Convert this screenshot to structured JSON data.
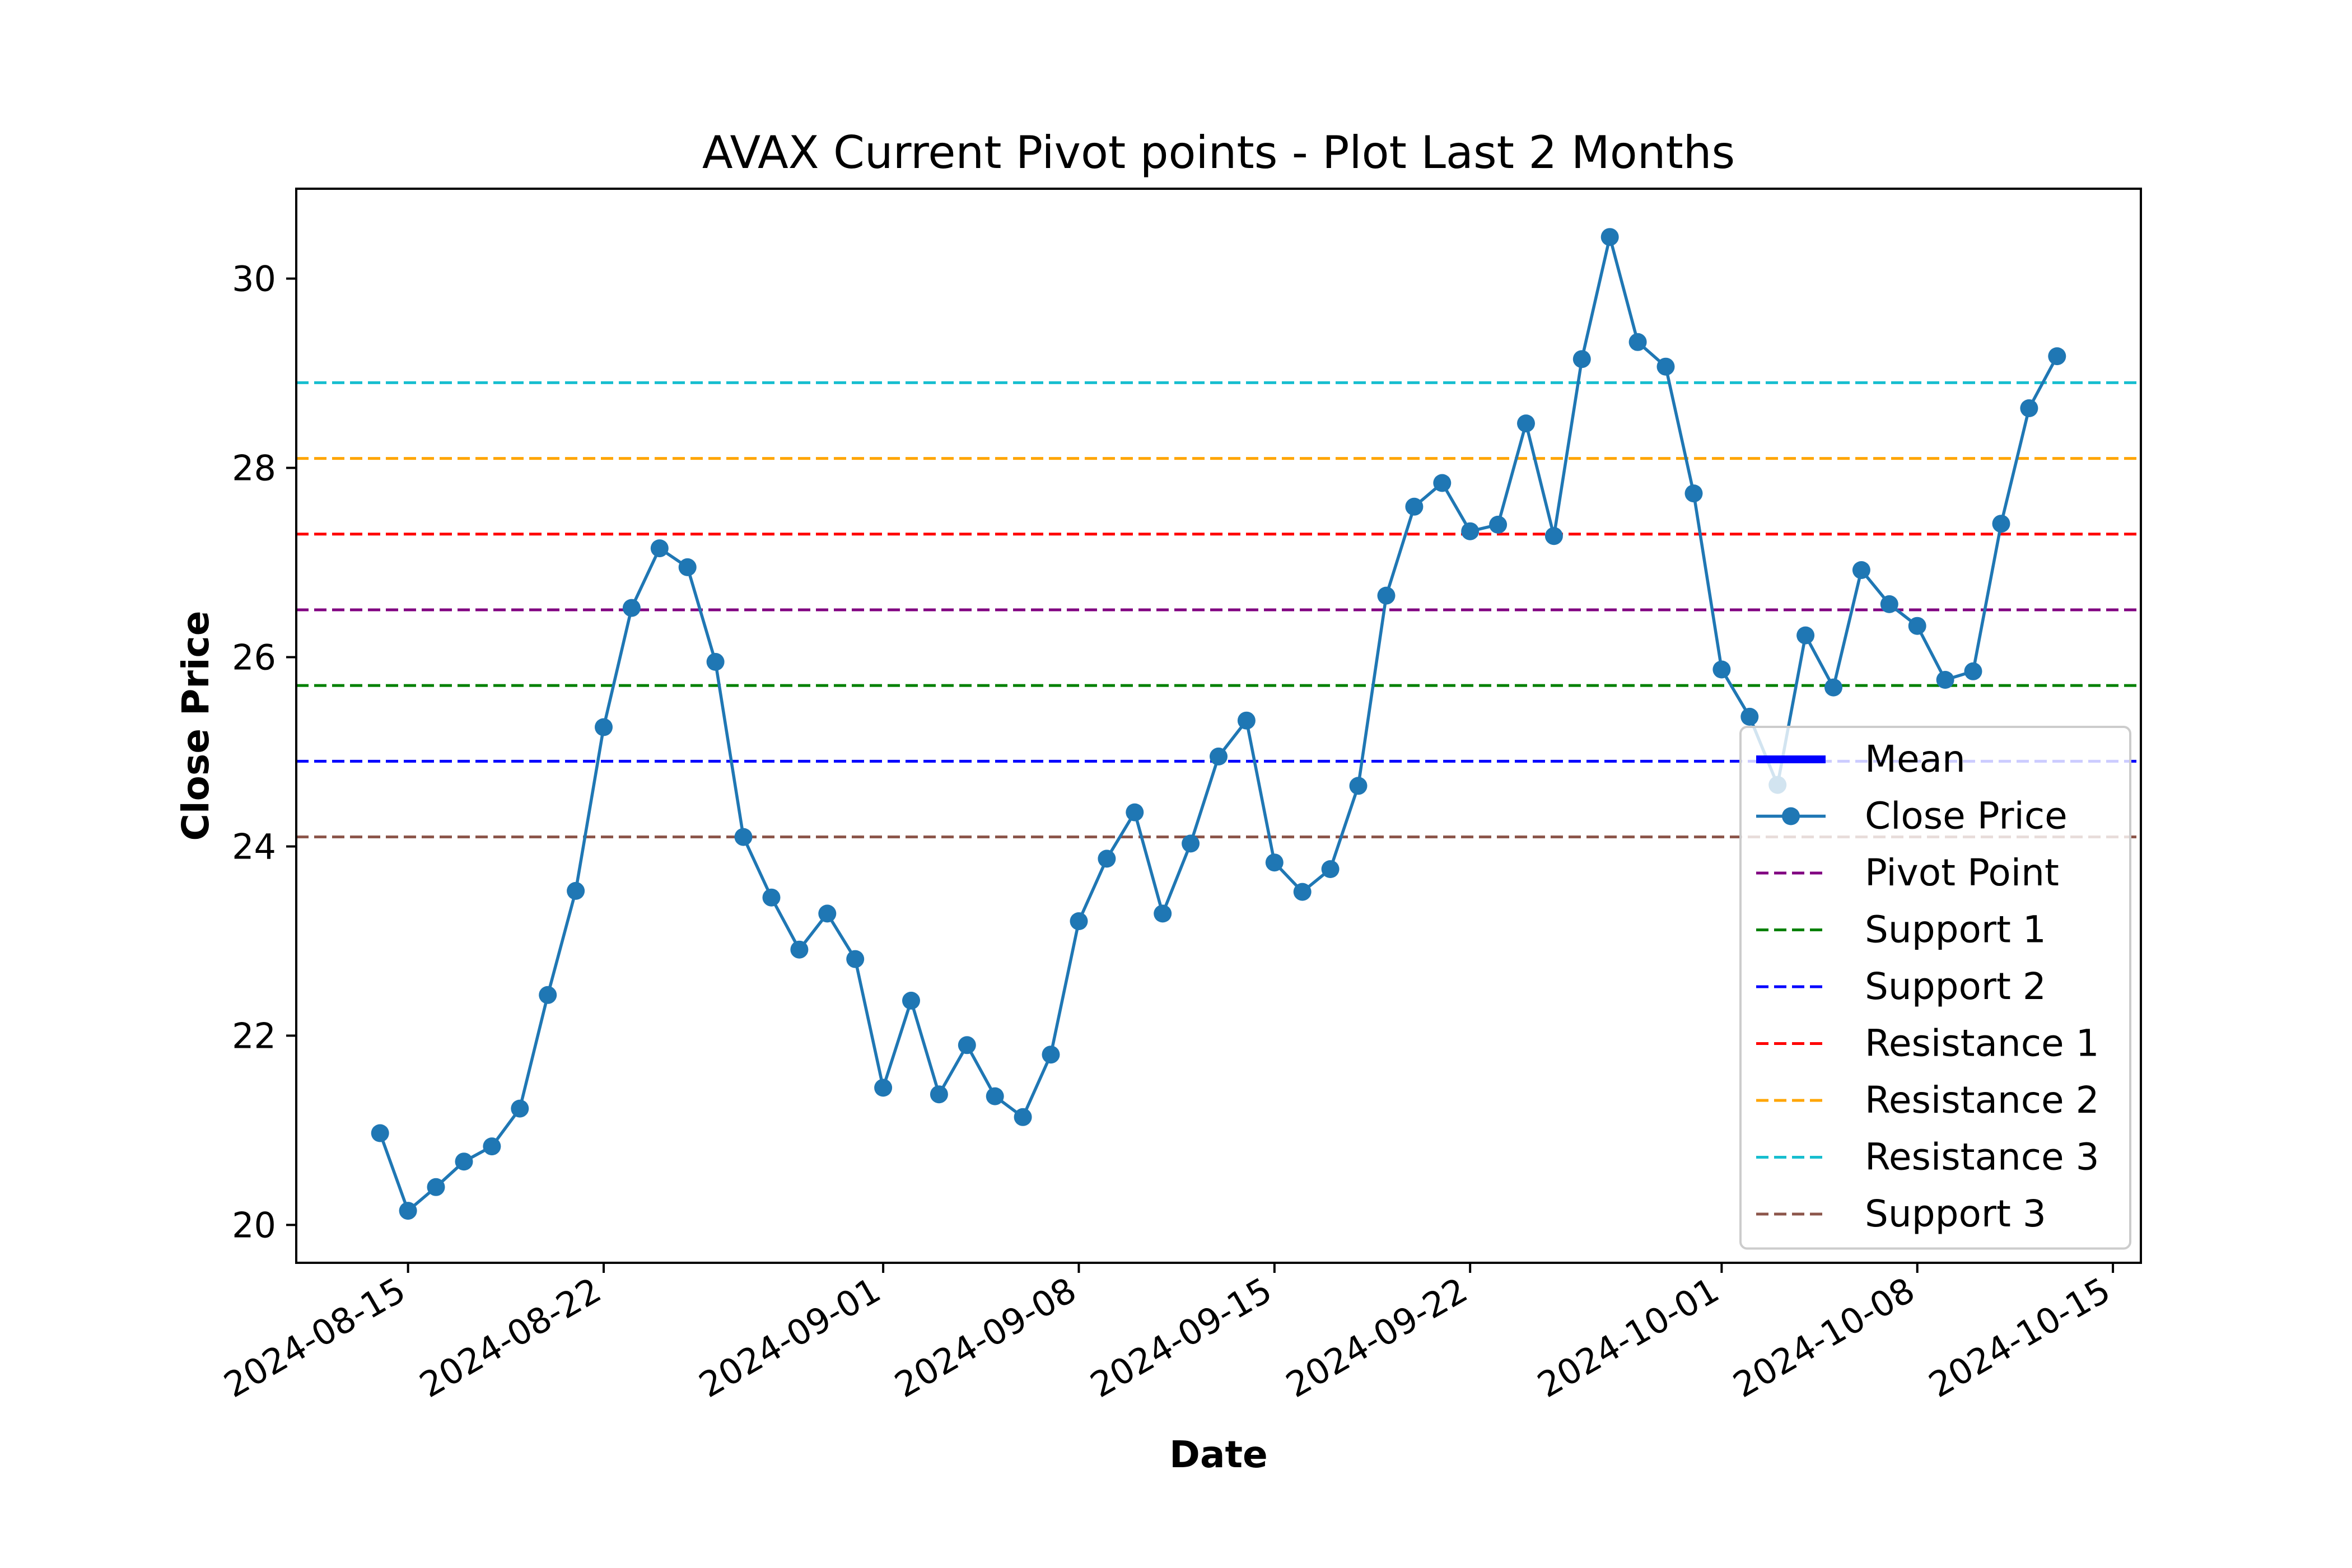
{
  "chart_data": {
    "type": "line",
    "title": "AVAX Current Pivot points - Plot Last 2 Months",
    "xlabel": "Date",
    "ylabel": "Close Price",
    "xlim": [
      "2024-08-11",
      "2024-10-16"
    ],
    "ylim": [
      19.6,
      30.95
    ],
    "grid": false,
    "legend_position": "center-right",
    "x_ticks": [
      "2024-08-15",
      "2024-08-22",
      "2024-09-01",
      "2024-09-08",
      "2024-09-15",
      "2024-09-22",
      "2024-10-01",
      "2024-10-08",
      "2024-10-15"
    ],
    "y_ticks": [
      20,
      22,
      24,
      26,
      28,
      30
    ],
    "series": [
      {
        "name": "Close Price",
        "color": "#1f77b4",
        "marker": "circle",
        "x": [
          "2024-08-14",
          "2024-08-15",
          "2024-08-16",
          "2024-08-17",
          "2024-08-18",
          "2024-08-19",
          "2024-08-20",
          "2024-08-21",
          "2024-08-22",
          "2024-08-23",
          "2024-08-24",
          "2024-08-25",
          "2024-08-26",
          "2024-08-27",
          "2024-08-28",
          "2024-08-29",
          "2024-08-30",
          "2024-08-31",
          "2024-09-01",
          "2024-09-02",
          "2024-09-03",
          "2024-09-04",
          "2024-09-05",
          "2024-09-06",
          "2024-09-07",
          "2024-09-08",
          "2024-09-09",
          "2024-09-10",
          "2024-09-11",
          "2024-09-12",
          "2024-09-13",
          "2024-09-14",
          "2024-09-15",
          "2024-09-16",
          "2024-09-17",
          "2024-09-18",
          "2024-09-19",
          "2024-09-20",
          "2024-09-21",
          "2024-09-22",
          "2024-09-23",
          "2024-09-24",
          "2024-09-25",
          "2024-09-26",
          "2024-09-27",
          "2024-09-28",
          "2024-09-29",
          "2024-09-30",
          "2024-10-01",
          "2024-10-02",
          "2024-10-03",
          "2024-10-04",
          "2024-10-05",
          "2024-10-06",
          "2024-10-07",
          "2024-10-08",
          "2024-10-09",
          "2024-10-10",
          "2024-10-11",
          "2024-10-12",
          "2024-10-13"
        ],
        "values": [
          20.97,
          20.15,
          20.4,
          20.67,
          20.83,
          21.23,
          22.43,
          23.53,
          25.26,
          26.52,
          27.15,
          26.95,
          25.95,
          24.1,
          23.46,
          22.91,
          23.29,
          22.81,
          21.45,
          22.37,
          21.38,
          21.9,
          21.36,
          21.14,
          21.8,
          23.21,
          23.87,
          24.36,
          23.29,
          24.03,
          24.95,
          25.33,
          23.83,
          23.52,
          23.76,
          24.64,
          26.65,
          27.59,
          27.84,
          27.33,
          27.4,
          28.47,
          27.28,
          29.15,
          30.44,
          29.33,
          29.07,
          27.73,
          25.87,
          25.37,
          24.65,
          26.23,
          25.68,
          26.92,
          26.56,
          26.33,
          25.76,
          25.85,
          27.41,
          28.63,
          29.18
        ]
      }
    ],
    "reference_lines": [
      {
        "name": "Pivot Point",
        "value": 26.5,
        "color": "#800080",
        "style": "dashed"
      },
      {
        "name": "Support 1",
        "value": 25.7,
        "color": "#008000",
        "style": "dashed"
      },
      {
        "name": "Support 2",
        "value": 24.9,
        "color": "#0000ff",
        "style": "dashed"
      },
      {
        "name": "Resistance 1",
        "value": 27.3,
        "color": "#ff0000",
        "style": "dashed"
      },
      {
        "name": "Resistance 2",
        "value": 28.1,
        "color": "#ffa500",
        "style": "dashed"
      },
      {
        "name": "Resistance 3",
        "value": 28.9,
        "color": "#17becf",
        "style": "dashed"
      },
      {
        "name": "Support 3",
        "value": 24.1,
        "color": "#8c564b",
        "style": "dashed"
      }
    ],
    "legend": [
      {
        "label": "Mean",
        "color": "#0000ff",
        "kind": "solid-thick"
      },
      {
        "label": "Close Price",
        "color": "#1f77b4",
        "kind": "line-marker"
      },
      {
        "label": "Pivot Point",
        "color": "#800080",
        "kind": "dashed"
      },
      {
        "label": "Support 1",
        "color": "#008000",
        "kind": "dashed"
      },
      {
        "label": "Support 2",
        "color": "#0000ff",
        "kind": "dashed"
      },
      {
        "label": "Resistance 1",
        "color": "#ff0000",
        "kind": "dashed"
      },
      {
        "label": "Resistance 2",
        "color": "#ffa500",
        "kind": "dashed"
      },
      {
        "label": "Resistance 3",
        "color": "#17becf",
        "kind": "dashed"
      },
      {
        "label": "Support 3",
        "color": "#8c564b",
        "kind": "dashed"
      }
    ]
  }
}
